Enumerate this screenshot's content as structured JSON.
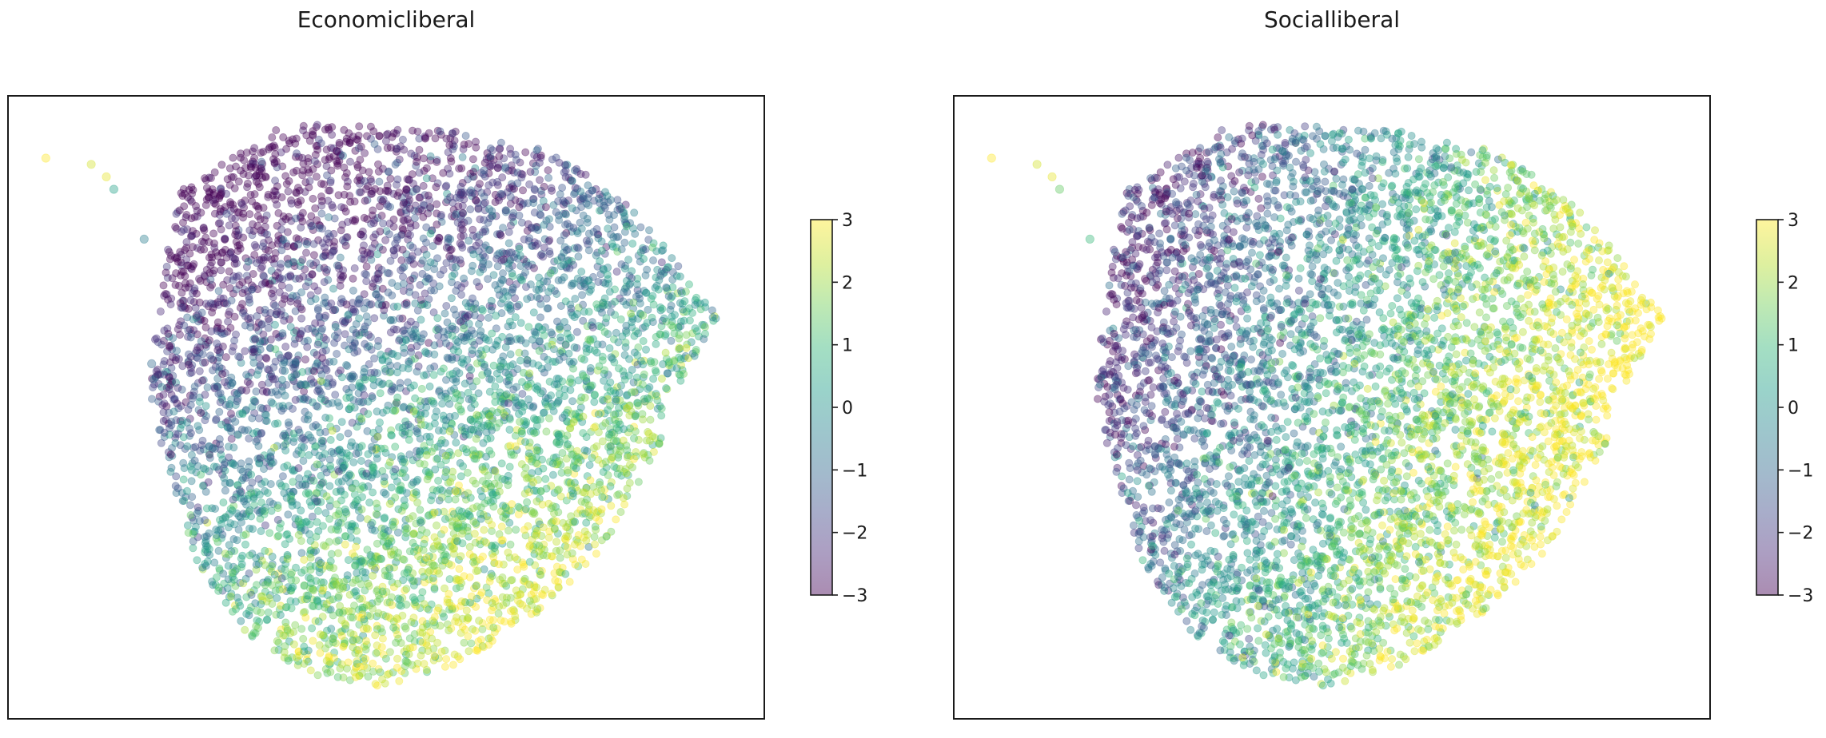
{
  "chart_data": [
    {
      "type": "scatter",
      "title": "Economicliberal",
      "xlabel": "",
      "ylabel": "",
      "x_ticks_shown": false,
      "y_ticks_shown": false,
      "grid": false,
      "colormap": "viridis",
      "point_alpha": 0.4,
      "colorbar": {
        "range": [
          -3,
          3
        ],
        "ticks": [
          3,
          2,
          1,
          0,
          -1,
          -2,
          -3
        ],
        "tick_labels": [
          "3",
          "2",
          "1",
          "0",
          "−1",
          "−2",
          "−3"
        ],
        "placement": "right"
      },
      "gradient_direction_deg": 60,
      "gradient_strength": 3.2,
      "outliers": [
        {
          "u": 0.05,
          "v": 0.1,
          "value": 3
        },
        {
          "u": 0.11,
          "v": 0.11,
          "value": 2.6
        },
        {
          "u": 0.13,
          "v": 0.13,
          "value": 2.8
        },
        {
          "u": 0.14,
          "v": 0.15,
          "value": 0.4
        },
        {
          "u": 0.18,
          "v": 0.23,
          "value": -0.5
        },
        {
          "u": 0.19,
          "v": 0.43,
          "value": -1
        }
      ]
    },
    {
      "type": "scatter",
      "title": "Socialliberal",
      "xlabel": "",
      "ylabel": "",
      "x_ticks_shown": false,
      "y_ticks_shown": false,
      "grid": false,
      "colormap": "viridis",
      "point_alpha": 0.4,
      "colorbar": {
        "range": [
          -3,
          3
        ],
        "ticks": [
          3,
          2,
          1,
          0,
          -1,
          -2,
          -3
        ],
        "tick_labels": [
          "3",
          "2",
          "1",
          "0",
          "−1",
          "−2",
          "−3"
        ],
        "placement": "right"
      },
      "gradient_direction_deg": 20,
      "gradient_strength": 3.0,
      "outliers": [
        {
          "u": 0.05,
          "v": 0.1,
          "value": 3
        },
        {
          "u": 0.11,
          "v": 0.11,
          "value": 2.6
        },
        {
          "u": 0.13,
          "v": 0.13,
          "value": 2.8
        },
        {
          "u": 0.14,
          "v": 0.15,
          "value": 1.5
        },
        {
          "u": 0.18,
          "v": 0.23,
          "value": 1
        }
      ]
    }
  ],
  "colors": {
    "viridis_stops": [
      "#440154",
      "#482878",
      "#3e4989",
      "#31688e",
      "#26828e",
      "#1f9e89",
      "#35b779",
      "#6ece58",
      "#b5de2b",
      "#fde725"
    ],
    "frame": "#1a1a1a",
    "background": "#ffffff"
  }
}
